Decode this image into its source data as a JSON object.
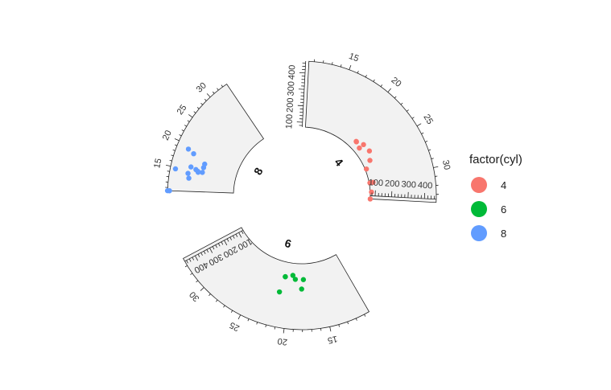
{
  "chart_data": {
    "type": "scatter",
    "layout": "circular-sectors",
    "facet_by": "cyl",
    "x_variable": "mpg",
    "y_variable": "disp",
    "y_ticks": [
      100,
      200,
      300,
      400
    ],
    "y_range": [
      71.1,
      472
    ],
    "sectors": [
      {
        "label": "4",
        "x_range": [
          10.4,
          33.9
        ],
        "x_ticks": [
          15,
          20,
          25,
          30
        ],
        "color": "#F8766D",
        "points": [
          {
            "x": 22.8,
            "y": 108
          },
          {
            "x": 24.4,
            "y": 146.7
          },
          {
            "x": 22.8,
            "y": 140.8
          },
          {
            "x": 32.4,
            "y": 78.7
          },
          {
            "x": 30.4,
            "y": 75.7
          },
          {
            "x": 33.9,
            "y": 71.1
          },
          {
            "x": 21.5,
            "y": 120.1
          },
          {
            "x": 27.3,
            "y": 79
          },
          {
            "x": 26.0,
            "y": 120.3
          },
          {
            "x": 30.4,
            "y": 95.1
          },
          {
            "x": 21.4,
            "y": 121
          }
        ]
      },
      {
        "label": "6",
        "x_range": [
          10.4,
          33.9
        ],
        "x_ticks": [
          15,
          20,
          25,
          30
        ],
        "color": "#00BA38",
        "points": [
          {
            "x": 21.0,
            "y": 160
          },
          {
            "x": 21.0,
            "y": 160
          },
          {
            "x": 21.4,
            "y": 258
          },
          {
            "x": 18.1,
            "y": 225
          },
          {
            "x": 19.2,
            "y": 167.6
          },
          {
            "x": 17.8,
            "y": 167.6
          },
          {
            "x": 19.7,
            "y": 145
          }
        ]
      },
      {
        "label": "8",
        "x_range": [
          10.4,
          33.9
        ],
        "x_ticks": [
          15,
          20,
          25,
          30
        ],
        "color": "#619CFF",
        "points": [
          {
            "x": 18.7,
            "y": 360
          },
          {
            "x": 14.3,
            "y": 360
          },
          {
            "x": 16.4,
            "y": 275.8
          },
          {
            "x": 17.3,
            "y": 275.8
          },
          {
            "x": 15.2,
            "y": 275.8
          },
          {
            "x": 10.4,
            "y": 472
          },
          {
            "x": 10.4,
            "y": 460
          },
          {
            "x": 14.7,
            "y": 440
          },
          {
            "x": 15.5,
            "y": 318
          },
          {
            "x": 15.2,
            "y": 304
          },
          {
            "x": 13.3,
            "y": 350
          },
          {
            "x": 19.2,
            "y": 400
          },
          {
            "x": 15.8,
            "y": 351
          },
          {
            "x": 15.0,
            "y": 301
          }
        ]
      }
    ],
    "legend": {
      "title": "factor(cyl)",
      "position": "right",
      "entries": [
        {
          "label": "4",
          "color": "#F8766D"
        },
        {
          "label": "6",
          "color": "#00BA38"
        },
        {
          "label": "8",
          "color": "#619CFF"
        }
      ]
    }
  }
}
